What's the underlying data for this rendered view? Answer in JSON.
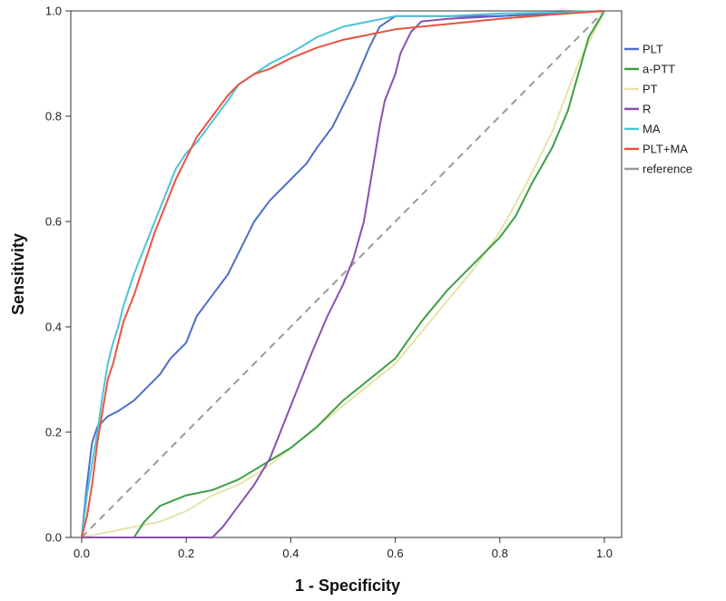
{
  "chart_data": {
    "type": "line",
    "title": "",
    "xlabel": "1 - Specificity",
    "ylabel": "Sensitivity",
    "xlim": [
      0,
      1
    ],
    "ylim": [
      0,
      1
    ],
    "xticks": [
      "0.0",
      "0.2",
      "0.4",
      "0.6",
      "0.8",
      "1.0"
    ],
    "yticks": [
      "0.0",
      "0.2",
      "0.4",
      "0.6",
      "0.8",
      "1.0"
    ],
    "grid": false,
    "legend_position": "right",
    "series": [
      {
        "name": "PLT",
        "color": "#4a6fc7",
        "x": [
          0.0,
          0.005,
          0.01,
          0.015,
          0.02,
          0.03,
          0.04,
          0.05,
          0.07,
          0.1,
          0.12,
          0.15,
          0.17,
          0.2,
          0.22,
          0.25,
          0.28,
          0.3,
          0.33,
          0.36,
          0.4,
          0.43,
          0.45,
          0.48,
          0.5,
          0.52,
          0.55,
          0.57,
          0.6,
          0.65,
          0.7,
          0.8,
          0.9,
          1.0
        ],
        "y": [
          0.0,
          0.05,
          0.1,
          0.14,
          0.18,
          0.21,
          0.22,
          0.23,
          0.24,
          0.26,
          0.28,
          0.31,
          0.34,
          0.37,
          0.42,
          0.46,
          0.5,
          0.54,
          0.6,
          0.64,
          0.68,
          0.71,
          0.74,
          0.78,
          0.82,
          0.86,
          0.93,
          0.97,
          0.99,
          0.99,
          0.99,
          0.99,
          0.995,
          1.0
        ]
      },
      {
        "name": "a-PTT",
        "color": "#3e9e44",
        "x": [
          0.0,
          0.1,
          0.12,
          0.15,
          0.2,
          0.25,
          0.3,
          0.35,
          0.4,
          0.45,
          0.5,
          0.55,
          0.6,
          0.65,
          0.7,
          0.75,
          0.8,
          0.83,
          0.86,
          0.9,
          0.93,
          0.95,
          0.97,
          1.0
        ],
        "y": [
          0.0,
          0.0,
          0.03,
          0.06,
          0.08,
          0.09,
          0.11,
          0.14,
          0.17,
          0.21,
          0.26,
          0.3,
          0.34,
          0.41,
          0.47,
          0.52,
          0.57,
          0.61,
          0.67,
          0.74,
          0.81,
          0.88,
          0.95,
          1.0
        ]
      },
      {
        "name": "PT",
        "color": "#e6e4a8",
        "x": [
          0.0,
          0.05,
          0.1,
          0.15,
          0.2,
          0.25,
          0.3,
          0.35,
          0.4,
          0.45,
          0.5,
          0.55,
          0.6,
          0.65,
          0.7,
          0.75,
          0.8,
          0.85,
          0.9,
          0.95,
          1.0
        ],
        "y": [
          0.0,
          0.01,
          0.02,
          0.03,
          0.05,
          0.08,
          0.1,
          0.13,
          0.17,
          0.21,
          0.25,
          0.29,
          0.33,
          0.39,
          0.45,
          0.51,
          0.58,
          0.67,
          0.77,
          0.9,
          1.0
        ]
      },
      {
        "name": "R",
        "color": "#8b4fae",
        "x": [
          0.0,
          0.25,
          0.27,
          0.3,
          0.33,
          0.36,
          0.38,
          0.4,
          0.42,
          0.44,
          0.47,
          0.5,
          0.52,
          0.54,
          0.55,
          0.56,
          0.57,
          0.58,
          0.6,
          0.61,
          0.63,
          0.65,
          0.7,
          0.8,
          0.9,
          1.0
        ],
        "y": [
          0.0,
          0.0,
          0.02,
          0.06,
          0.1,
          0.15,
          0.2,
          0.25,
          0.3,
          0.35,
          0.42,
          0.48,
          0.53,
          0.6,
          0.66,
          0.72,
          0.78,
          0.83,
          0.88,
          0.92,
          0.96,
          0.98,
          0.985,
          0.99,
          0.995,
          1.0
        ]
      },
      {
        "name": "MA",
        "color": "#4ec3d6",
        "x": [
          0.0,
          0.01,
          0.02,
          0.03,
          0.04,
          0.05,
          0.06,
          0.07,
          0.08,
          0.1,
          0.12,
          0.14,
          0.16,
          0.18,
          0.2,
          0.22,
          0.25,
          0.28,
          0.3,
          0.33,
          0.36,
          0.4,
          0.45,
          0.5,
          0.55,
          0.6,
          0.7,
          0.8,
          0.9,
          1.0
        ],
        "y": [
          0.0,
          0.08,
          0.14,
          0.2,
          0.27,
          0.33,
          0.37,
          0.4,
          0.44,
          0.5,
          0.55,
          0.6,
          0.65,
          0.7,
          0.73,
          0.75,
          0.79,
          0.83,
          0.86,
          0.88,
          0.9,
          0.92,
          0.95,
          0.97,
          0.98,
          0.99,
          0.99,
          0.995,
          0.997,
          1.0
        ]
      },
      {
        "name": "PLT+MA",
        "color": "#e8533f",
        "x": [
          0.0,
          0.01,
          0.02,
          0.03,
          0.04,
          0.05,
          0.06,
          0.07,
          0.08,
          0.1,
          0.12,
          0.14,
          0.16,
          0.18,
          0.2,
          0.22,
          0.25,
          0.28,
          0.3,
          0.33,
          0.36,
          0.4,
          0.45,
          0.5,
          0.55,
          0.6,
          0.7,
          0.8,
          0.9,
          1.0
        ],
        "y": [
          0.0,
          0.04,
          0.1,
          0.18,
          0.24,
          0.3,
          0.33,
          0.37,
          0.41,
          0.46,
          0.52,
          0.58,
          0.63,
          0.68,
          0.72,
          0.76,
          0.8,
          0.84,
          0.86,
          0.88,
          0.89,
          0.91,
          0.93,
          0.945,
          0.955,
          0.965,
          0.975,
          0.985,
          0.993,
          1.0
        ]
      },
      {
        "name": "reference",
        "color": "#9a9a9a",
        "dashed": true,
        "x": [
          0,
          1
        ],
        "y": [
          0,
          1
        ]
      }
    ]
  }
}
